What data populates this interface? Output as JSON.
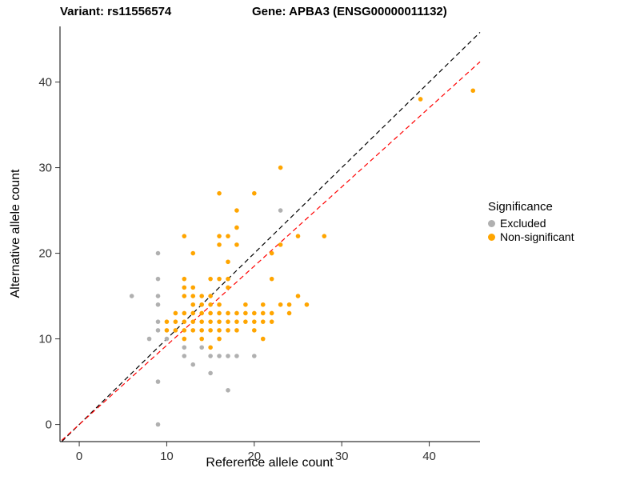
{
  "titles": {
    "variant": "Variant: rs11556574",
    "gene": "Gene: APBA3 (ENSG00000011132)"
  },
  "axes": {
    "xlabel": "Reference allele count",
    "ylabel": "Alternative allele count"
  },
  "legend": {
    "title": "Significance",
    "items": [
      {
        "label": "Excluded",
        "color": "#b0b0b0"
      },
      {
        "label": "Non-significant",
        "color": "#FFA500"
      }
    ]
  },
  "chart_data": {
    "type": "scatter",
    "title": "",
    "xlabel": "Reference allele count",
    "ylabel": "Alternative allele count",
    "xlim": [
      -2.2,
      45.8
    ],
    "ylim": [
      -2.0,
      46.5
    ],
    "x_ticks": [
      0,
      10,
      20,
      30,
      40
    ],
    "y_ticks": [
      0,
      10,
      20,
      30,
      40
    ],
    "grid": false,
    "legend_position": "right",
    "lines": [
      {
        "name": "identity",
        "slope": 1.0,
        "intercept": 0,
        "color": "#000000",
        "dashed": true
      },
      {
        "name": "fitted-proportion",
        "slope": 0.925,
        "intercept": 0,
        "color": "#FF0000",
        "dashed": true
      }
    ],
    "series": [
      {
        "name": "Excluded",
        "color": "#b0b0b0",
        "points": [
          [
            6,
            15
          ],
          [
            8,
            10
          ],
          [
            9,
            20
          ],
          [
            9,
            17
          ],
          [
            9,
            15
          ],
          [
            9,
            14
          ],
          [
            9,
            12
          ],
          [
            9,
            11
          ],
          [
            9,
            5
          ],
          [
            9,
            0
          ],
          [
            10,
            10
          ],
          [
            12,
            8
          ],
          [
            12,
            9
          ],
          [
            13,
            7
          ],
          [
            14,
            9
          ],
          [
            15,
            6
          ],
          [
            15,
            8
          ],
          [
            16,
            8
          ],
          [
            17,
            4
          ],
          [
            17,
            8
          ],
          [
            18,
            8
          ],
          [
            20,
            8
          ],
          [
            23,
            25
          ]
        ]
      },
      {
        "name": "Non-significant",
        "color": "#FFA500",
        "points": [
          [
            10,
            11
          ],
          [
            10,
            12
          ],
          [
            11,
            11
          ],
          [
            11,
            12
          ],
          [
            11,
            13
          ],
          [
            12,
            10
          ],
          [
            12,
            11
          ],
          [
            12,
            12
          ],
          [
            12,
            13
          ],
          [
            12,
            15
          ],
          [
            12,
            16
          ],
          [
            12,
            17
          ],
          [
            12,
            22
          ],
          [
            13,
            11
          ],
          [
            13,
            12
          ],
          [
            13,
            13
          ],
          [
            13,
            14
          ],
          [
            13,
            15
          ],
          [
            13,
            16
          ],
          [
            13,
            20
          ],
          [
            14,
            10
          ],
          [
            14,
            11
          ],
          [
            14,
            12
          ],
          [
            14,
            13
          ],
          [
            14,
            14
          ],
          [
            14,
            15
          ],
          [
            15,
            9
          ],
          [
            15,
            11
          ],
          [
            15,
            12
          ],
          [
            15,
            13
          ],
          [
            15,
            14
          ],
          [
            15,
            15
          ],
          [
            15,
            17
          ],
          [
            16,
            10
          ],
          [
            16,
            11
          ],
          [
            16,
            12
          ],
          [
            16,
            13
          ],
          [
            16,
            14
          ],
          [
            16,
            17
          ],
          [
            16,
            21
          ],
          [
            16,
            22
          ],
          [
            16,
            27
          ],
          [
            17,
            11
          ],
          [
            17,
            12
          ],
          [
            17,
            13
          ],
          [
            17,
            16
          ],
          [
            17,
            17
          ],
          [
            17,
            19
          ],
          [
            17,
            22
          ],
          [
            18,
            11
          ],
          [
            18,
            12
          ],
          [
            18,
            13
          ],
          [
            18,
            21
          ],
          [
            18,
            23
          ],
          [
            18,
            25
          ],
          [
            19,
            12
          ],
          [
            19,
            13
          ],
          [
            19,
            14
          ],
          [
            20,
            11
          ],
          [
            20,
            12
          ],
          [
            20,
            13
          ],
          [
            20,
            27
          ],
          [
            21,
            10
          ],
          [
            21,
            12
          ],
          [
            21,
            13
          ],
          [
            21,
            14
          ],
          [
            22,
            12
          ],
          [
            22,
            13
          ],
          [
            22,
            17
          ],
          [
            22,
            20
          ],
          [
            23,
            14
          ],
          [
            23,
            21
          ],
          [
            23,
            30
          ],
          [
            24,
            13
          ],
          [
            24,
            14
          ],
          [
            25,
            15
          ],
          [
            25,
            22
          ],
          [
            26,
            14
          ],
          [
            28,
            22
          ],
          [
            39,
            38
          ],
          [
            45,
            39
          ]
        ]
      }
    ]
  }
}
